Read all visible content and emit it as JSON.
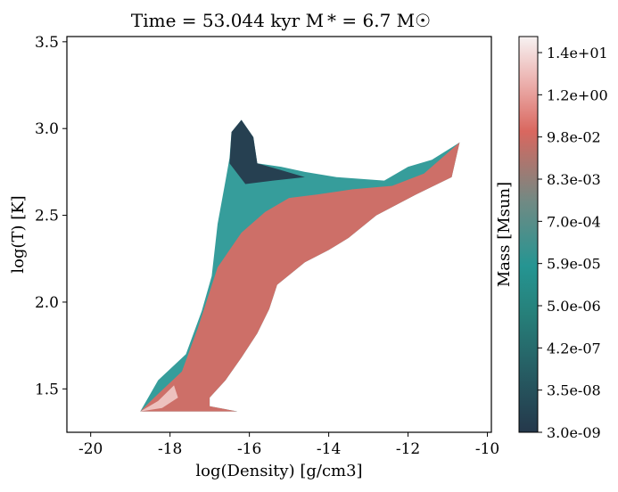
{
  "chart_data": {
    "type": "heatmap",
    "title": "Time = 53.044 kyr    M * = 6.7 M☉",
    "xlabel": "log(Density) [g/cm3]",
    "ylabel": "log(T) [K]",
    "xlim": [
      -20.6,
      -9.9
    ],
    "ylim": [
      1.25,
      3.53
    ],
    "x_ticks": [
      -20,
      -18,
      -16,
      -14,
      -12,
      -10
    ],
    "x_tick_labels": [
      "-20",
      "-18",
      "-16",
      "-14",
      "-12",
      "-10"
    ],
    "y_ticks": [
      1.5,
      2.0,
      2.5,
      3.0,
      3.5
    ],
    "y_tick_labels": [
      "1.5",
      "2.0",
      "2.5",
      "3.0",
      "3.5"
    ],
    "colorbar": {
      "label": "Mass [Msun]",
      "scale": "log",
      "range": [
        3e-09,
        14
      ],
      "ticks": [
        "3.0e-09",
        "3.5e-08",
        "4.2e-07",
        "5.0e-06",
        "5.9e-05",
        "7.0e-04",
        "8.3e-03",
        "9.8e-02",
        "1.2e+00",
        "1.4e+01"
      ],
      "colors": [
        "#25384b",
        "#27776f",
        "#259592",
        "#6f8a84",
        "#d9675f",
        "#f5e6e6"
      ]
    },
    "regions": [
      {
        "name": "envelope",
        "color": "#259592",
        "outline": [
          [
            -18.75,
            1.37
          ],
          [
            -18.3,
            1.55
          ],
          [
            -17.6,
            1.7
          ],
          [
            -17.2,
            1.95
          ],
          [
            -16.95,
            2.15
          ],
          [
            -16.8,
            2.45
          ],
          [
            -16.6,
            2.7
          ],
          [
            -16.5,
            2.83
          ],
          [
            -16.45,
            2.98
          ],
          [
            -16.2,
            3.05
          ],
          [
            -15.9,
            2.95
          ],
          [
            -15.8,
            2.8
          ],
          [
            -15.2,
            2.78
          ],
          [
            -14.6,
            2.75
          ],
          [
            -13.8,
            2.72
          ],
          [
            -12.6,
            2.7
          ],
          [
            -12.0,
            2.78
          ],
          [
            -11.4,
            2.82
          ],
          [
            -10.7,
            2.92
          ],
          [
            -10.9,
            2.72
          ],
          [
            -11.8,
            2.62
          ],
          [
            -12.8,
            2.5
          ],
          [
            -13.5,
            2.37
          ],
          [
            -14.0,
            2.3
          ],
          [
            -14.6,
            2.23
          ],
          [
            -15.3,
            2.1
          ],
          [
            -15.5,
            1.96
          ],
          [
            -15.8,
            1.82
          ],
          [
            -16.2,
            1.68
          ],
          [
            -16.6,
            1.55
          ],
          [
            -17.0,
            1.45
          ],
          [
            -17.0,
            1.4
          ],
          [
            -16.3,
            1.37
          ]
        ]
      },
      {
        "name": "cold-dense-branch",
        "color": "#da6b64",
        "outline": [
          [
            -18.75,
            1.37
          ],
          [
            -18.4,
            1.45
          ],
          [
            -17.7,
            1.6
          ],
          [
            -17.3,
            1.85
          ],
          [
            -16.8,
            2.2
          ],
          [
            -16.2,
            2.4
          ],
          [
            -15.6,
            2.52
          ],
          [
            -15.0,
            2.6
          ],
          [
            -14.3,
            2.62
          ],
          [
            -13.4,
            2.65
          ],
          [
            -12.4,
            2.67
          ],
          [
            -11.6,
            2.74
          ],
          [
            -10.7,
            2.92
          ],
          [
            -10.9,
            2.72
          ],
          [
            -11.8,
            2.62
          ],
          [
            -12.8,
            2.5
          ],
          [
            -13.5,
            2.37
          ],
          [
            -14.0,
            2.3
          ],
          [
            -14.6,
            2.23
          ],
          [
            -15.3,
            2.1
          ],
          [
            -15.5,
            1.96
          ],
          [
            -15.8,
            1.82
          ],
          [
            -16.2,
            1.68
          ],
          [
            -16.6,
            1.55
          ],
          [
            -17.0,
            1.45
          ],
          [
            -17.0,
            1.4
          ],
          [
            -16.3,
            1.37
          ]
        ]
      },
      {
        "name": "hot-diffuse-cap",
        "color": "#25384b",
        "outline": [
          [
            -16.5,
            2.8
          ],
          [
            -16.45,
            2.98
          ],
          [
            -16.2,
            3.05
          ],
          [
            -15.9,
            2.95
          ],
          [
            -15.8,
            2.8
          ],
          [
            -15.2,
            2.76
          ],
          [
            -14.6,
            2.72
          ],
          [
            -15.4,
            2.7
          ],
          [
            -16.1,
            2.68
          ]
        ]
      },
      {
        "name": "peak-density-core",
        "color": "#f0c8c6",
        "outline": [
          [
            -18.75,
            1.37
          ],
          [
            -18.3,
            1.43
          ],
          [
            -17.9,
            1.52
          ],
          [
            -17.8,
            1.45
          ],
          [
            -18.2,
            1.39
          ]
        ]
      }
    ]
  }
}
